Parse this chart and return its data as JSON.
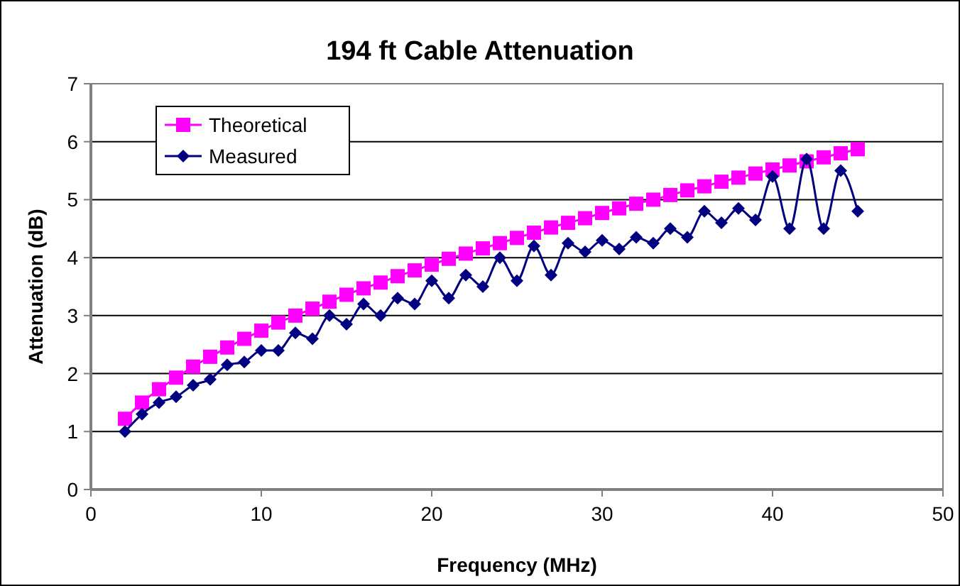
{
  "chart_data": {
    "type": "line",
    "title": "194 ft Cable Attenuation",
    "xlabel": "Frequency (MHz)",
    "ylabel": "Attenuation (dB)",
    "x": [
      2,
      3,
      4,
      5,
      6,
      7,
      8,
      9,
      10,
      11,
      12,
      13,
      14,
      15,
      16,
      17,
      18,
      19,
      20,
      21,
      22,
      23,
      24,
      25,
      26,
      27,
      28,
      29,
      30,
      31,
      32,
      33,
      34,
      35,
      36,
      37,
      38,
      39,
      40,
      41,
      42,
      43,
      44,
      45
    ],
    "series": [
      {
        "name": "Theoretical",
        "color": "#ff00ff",
        "marker": "square",
        "values": [
          1.22,
          1.5,
          1.73,
          1.93,
          2.12,
          2.29,
          2.45,
          2.6,
          2.74,
          2.88,
          3.0,
          3.12,
          3.24,
          3.36,
          3.47,
          3.57,
          3.68,
          3.78,
          3.88,
          3.98,
          4.07,
          4.16,
          4.25,
          4.34,
          4.43,
          4.52,
          4.6,
          4.68,
          4.77,
          4.85,
          4.93,
          5.0,
          5.08,
          5.16,
          5.23,
          5.31,
          5.38,
          5.45,
          5.52,
          5.59,
          5.66,
          5.73,
          5.8,
          5.87
        ]
      },
      {
        "name": "Measured",
        "color": "#000080",
        "marker": "diamond",
        "values": [
          1.0,
          1.3,
          1.5,
          1.6,
          1.8,
          1.9,
          2.15,
          2.2,
          2.4,
          2.4,
          2.7,
          2.6,
          3.0,
          2.85,
          3.2,
          3.0,
          3.3,
          3.2,
          3.6,
          3.3,
          3.7,
          3.5,
          4.0,
          3.6,
          4.2,
          3.7,
          4.25,
          4.1,
          4.3,
          4.15,
          4.35,
          4.25,
          4.5,
          4.35,
          4.8,
          4.6,
          4.85,
          4.65,
          5.4,
          4.5,
          5.7,
          4.5,
          5.5,
          4.8
        ]
      }
    ],
    "xlim": [
      0,
      50
    ],
    "xticks": [
      0,
      10,
      20,
      30,
      40,
      50
    ],
    "ylim": [
      0,
      7
    ],
    "yticks": [
      0,
      1,
      2,
      3,
      4,
      5,
      6,
      7
    ],
    "grid": "y",
    "legend": "top left"
  }
}
